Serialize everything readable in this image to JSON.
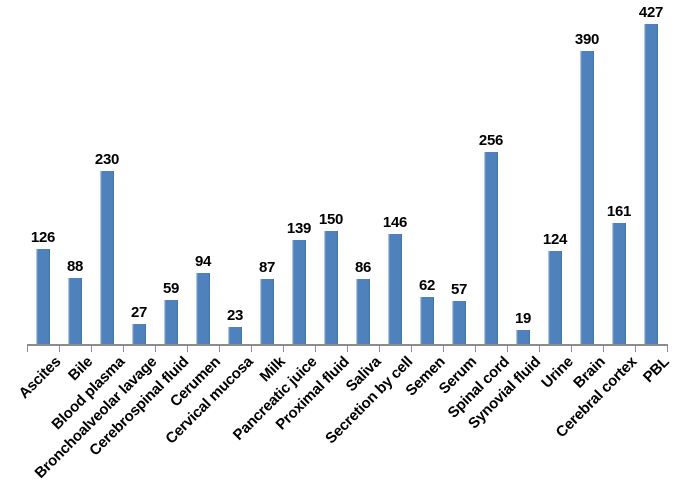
{
  "chart_data": {
    "type": "bar",
    "categories": [
      "Ascites",
      "Bile",
      "Blood plasma",
      "Bronchoalveolar lavage",
      "Cerebrospinal fluid",
      "Cerumen",
      "Cervical mucosa",
      "Milk",
      "Pancreatic juice",
      "Proximal fluid",
      "Saliva",
      "Secretion by cell",
      "Semen",
      "Serum",
      "Spinal cord",
      "Synovial fluid",
      "Urine",
      "Brain",
      "Cerebral cortex",
      "PBL"
    ],
    "values": [
      126,
      88,
      230,
      27,
      59,
      94,
      23,
      87,
      139,
      150,
      86,
      146,
      62,
      57,
      256,
      19,
      124,
      390,
      161,
      427
    ],
    "title": "",
    "xlabel": "",
    "ylabel": "",
    "ylim": [
      0,
      450
    ],
    "grid": false,
    "legend": false,
    "data_labels": true,
    "x_label_rotation_deg": 45,
    "bar_color": "#4F81BD",
    "axis_color": "#8C8C8C",
    "label_color": "#000000",
    "background_color": "#FFFFFF"
  }
}
